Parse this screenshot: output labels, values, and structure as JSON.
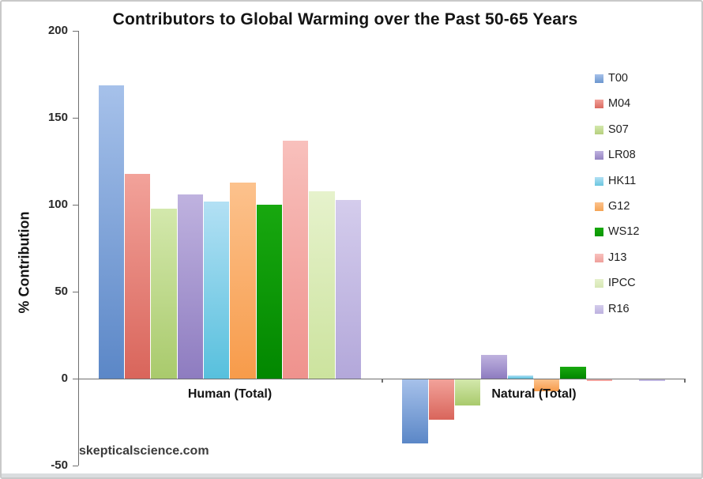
{
  "watermark": "skepticalscience.com",
  "chart_data": {
    "type": "bar",
    "title": "Contributors to Global Warming over the Past 50-65 Years",
    "xlabel": "",
    "ylabel": "% Contribution",
    "categories": [
      "Human (Total)",
      "Natural (Total)"
    ],
    "series": [
      {
        "name": "T00",
        "values": [
          169,
          -37
        ],
        "color": "#5b87c7",
        "color_light": "#a6c1ea",
        "legend_color": "#6c96ce"
      },
      {
        "name": "M04",
        "values": [
          118,
          -23
        ],
        "color": "#d9655b",
        "color_light": "#f2a29a",
        "legend_color": "#da6a60"
      },
      {
        "name": "S07",
        "values": [
          98,
          -15
        ],
        "color": "#a9ca6c",
        "color_light": "#d3e8ac",
        "legend_color": "#b5cf7e"
      },
      {
        "name": "LR08",
        "values": [
          106,
          14
        ],
        "color": "#8e7cc0",
        "color_light": "#bfb2df",
        "legend_color": "#9483c2"
      },
      {
        "name": "HK11",
        "values": [
          102,
          2
        ],
        "color": "#57c0dd",
        "color_light": "#b3e0f4",
        "legend_color": "#6ac6df"
      },
      {
        "name": "G12",
        "values": [
          113,
          -7
        ],
        "color": "#f79b4a",
        "color_light": "#fcc28d",
        "legend_color": "#f5a455"
      },
      {
        "name": "WS12",
        "values": [
          100,
          7
        ],
        "color": "#028700",
        "color_light": "#18a80f",
        "legend_color": "#0a9600"
      },
      {
        "name": "J13",
        "values": [
          137,
          -1
        ],
        "color": "#ef928d",
        "color_light": "#f8c0bc",
        "legend_color": "#efa09b"
      },
      {
        "name": "IPCC",
        "values": [
          108,
          0
        ],
        "color": "#cce39e",
        "color_light": "#e6f2cc",
        "legend_color": "#d6e6b4"
      },
      {
        "name": "R16",
        "values": [
          103,
          -1
        ],
        "color": "#b3a8da",
        "color_light": "#d4ccec",
        "legend_color": "#bcb1df"
      }
    ],
    "y_axis": {
      "min": -50,
      "max": 200,
      "tick_step": 50,
      "ticks": [
        200,
        150,
        100,
        50,
        0,
        -50
      ]
    },
    "legend_position": "right",
    "grid": false
  }
}
